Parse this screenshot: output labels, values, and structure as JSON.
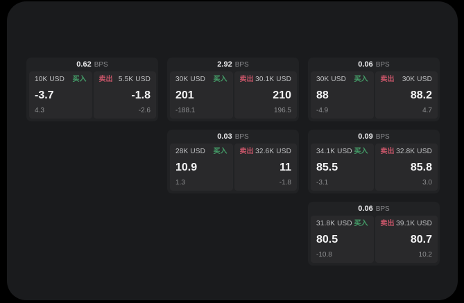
{
  "colors": {
    "page_bg": "#000000",
    "window_bg": "#1a1b1d",
    "card_bg": "#212224",
    "tile_bg": "#29292b",
    "buy_green": "#45a06a",
    "sell_red": "#c65568",
    "value_white": "#f4f4f5",
    "label_gray": "#c2c3c5",
    "muted_gray": "#8e8f91"
  },
  "labels": {
    "bps": "BPS",
    "buy": "买入",
    "sell": "卖出"
  },
  "cards": [
    {
      "bps": "0.62",
      "row": 1,
      "col": 1,
      "buy": {
        "amount": "10K USD",
        "value": "-3.7",
        "delta": "4.3"
      },
      "sell": {
        "amount": "5.5K USD",
        "value": "-1.8",
        "delta": "-2.6"
      }
    },
    {
      "bps": "2.92",
      "row": 1,
      "col": 2,
      "buy": {
        "amount": "30K USD",
        "value": "201",
        "delta": "-188.1"
      },
      "sell": {
        "amount": "30.1K USD",
        "value": "210",
        "delta": "196.5"
      }
    },
    {
      "bps": "0.06",
      "row": 1,
      "col": 3,
      "buy": {
        "amount": "30K USD",
        "value": "88",
        "delta": "-4.9"
      },
      "sell": {
        "amount": "30K USD",
        "value": "88.2",
        "delta": "4.7"
      }
    },
    {
      "bps": "0.03",
      "row": 2,
      "col": 2,
      "buy": {
        "amount": "28K USD",
        "value": "10.9",
        "delta": "1.3"
      },
      "sell": {
        "amount": "32.6K USD",
        "value": "11",
        "delta": "-1.8"
      }
    },
    {
      "bps": "0.09",
      "row": 2,
      "col": 3,
      "buy": {
        "amount": "34.1K USD",
        "value": "85.5",
        "delta": "-3.1"
      },
      "sell": {
        "amount": "32.8K USD",
        "value": "85.8",
        "delta": "3.0"
      }
    },
    {
      "bps": "0.06",
      "row": 3,
      "col": 3,
      "buy": {
        "amount": "31.8K USD",
        "value": "80.5",
        "delta": "-10.8"
      },
      "sell": {
        "amount": "39.1K USD",
        "value": "80.7",
        "delta": "10.2"
      }
    }
  ]
}
